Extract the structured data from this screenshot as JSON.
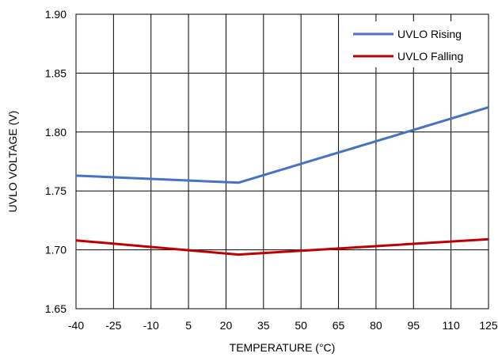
{
  "chart_data": {
    "type": "line",
    "title": "",
    "xlabel": "TEMPERATURE (°C)",
    "ylabel": "UVLO VOLTAGE (V)",
    "xlim": [
      -40,
      125
    ],
    "ylim": [
      1.65,
      1.9
    ],
    "xticks": [
      -40,
      -25,
      -10,
      5,
      20,
      35,
      50,
      65,
      80,
      95,
      110,
      125
    ],
    "xtick_labels": [
      "-40",
      "-25",
      "-10",
      "5",
      "20",
      "35",
      "50",
      "65",
      "80",
      "95",
      "110",
      "125"
    ],
    "yticks": [
      1.65,
      1.7,
      1.75,
      1.8,
      1.85,
      1.9
    ],
    "ytick_labels": [
      "1.65",
      "1.70",
      "1.75",
      "1.80",
      "1.85",
      "1.90"
    ],
    "grid": true,
    "legend_position": "top-right",
    "series": [
      {
        "name": "UVLO Rising",
        "color": "#4472C4",
        "x": [
          -40,
          25,
          125
        ],
        "y": [
          1.763,
          1.757,
          1.821
        ]
      },
      {
        "name": "UVLO Falling",
        "color": "#C00000",
        "x": [
          -40,
          25,
          125
        ],
        "y": [
          1.708,
          1.696,
          1.709
        ]
      }
    ]
  }
}
